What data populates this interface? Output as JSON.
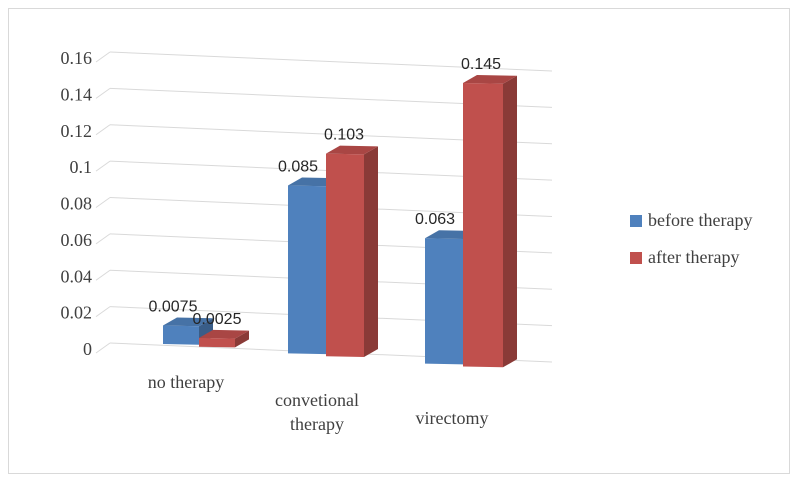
{
  "chart_data": {
    "type": "bar",
    "title": "",
    "xlabel": "",
    "ylabel": "",
    "ylim": [
      0,
      0.16
    ],
    "yticks": [
      "0",
      "0.02",
      "0.04",
      "0.06",
      "0.08",
      "0.1",
      "0.12",
      "0.14",
      "0.16"
    ],
    "categories": [
      [
        "no therapy"
      ],
      [
        "convetional",
        "therapy"
      ],
      [
        "virectomy"
      ]
    ],
    "series": [
      {
        "name": "before therapy",
        "values": [
          0.0075,
          0.085,
          0.063
        ],
        "labels": [
          "0.0075",
          "0.085",
          "0.063"
        ],
        "color": "#4f81bd"
      },
      {
        "name": "after therapy",
        "values": [
          0.0025,
          0.103,
          0.145
        ],
        "labels": [
          "0.0025",
          "0.103",
          "0.145"
        ],
        "color": "#c0504d"
      }
    ],
    "grid": true,
    "legend": "right",
    "style": "3d-clustered-column"
  }
}
